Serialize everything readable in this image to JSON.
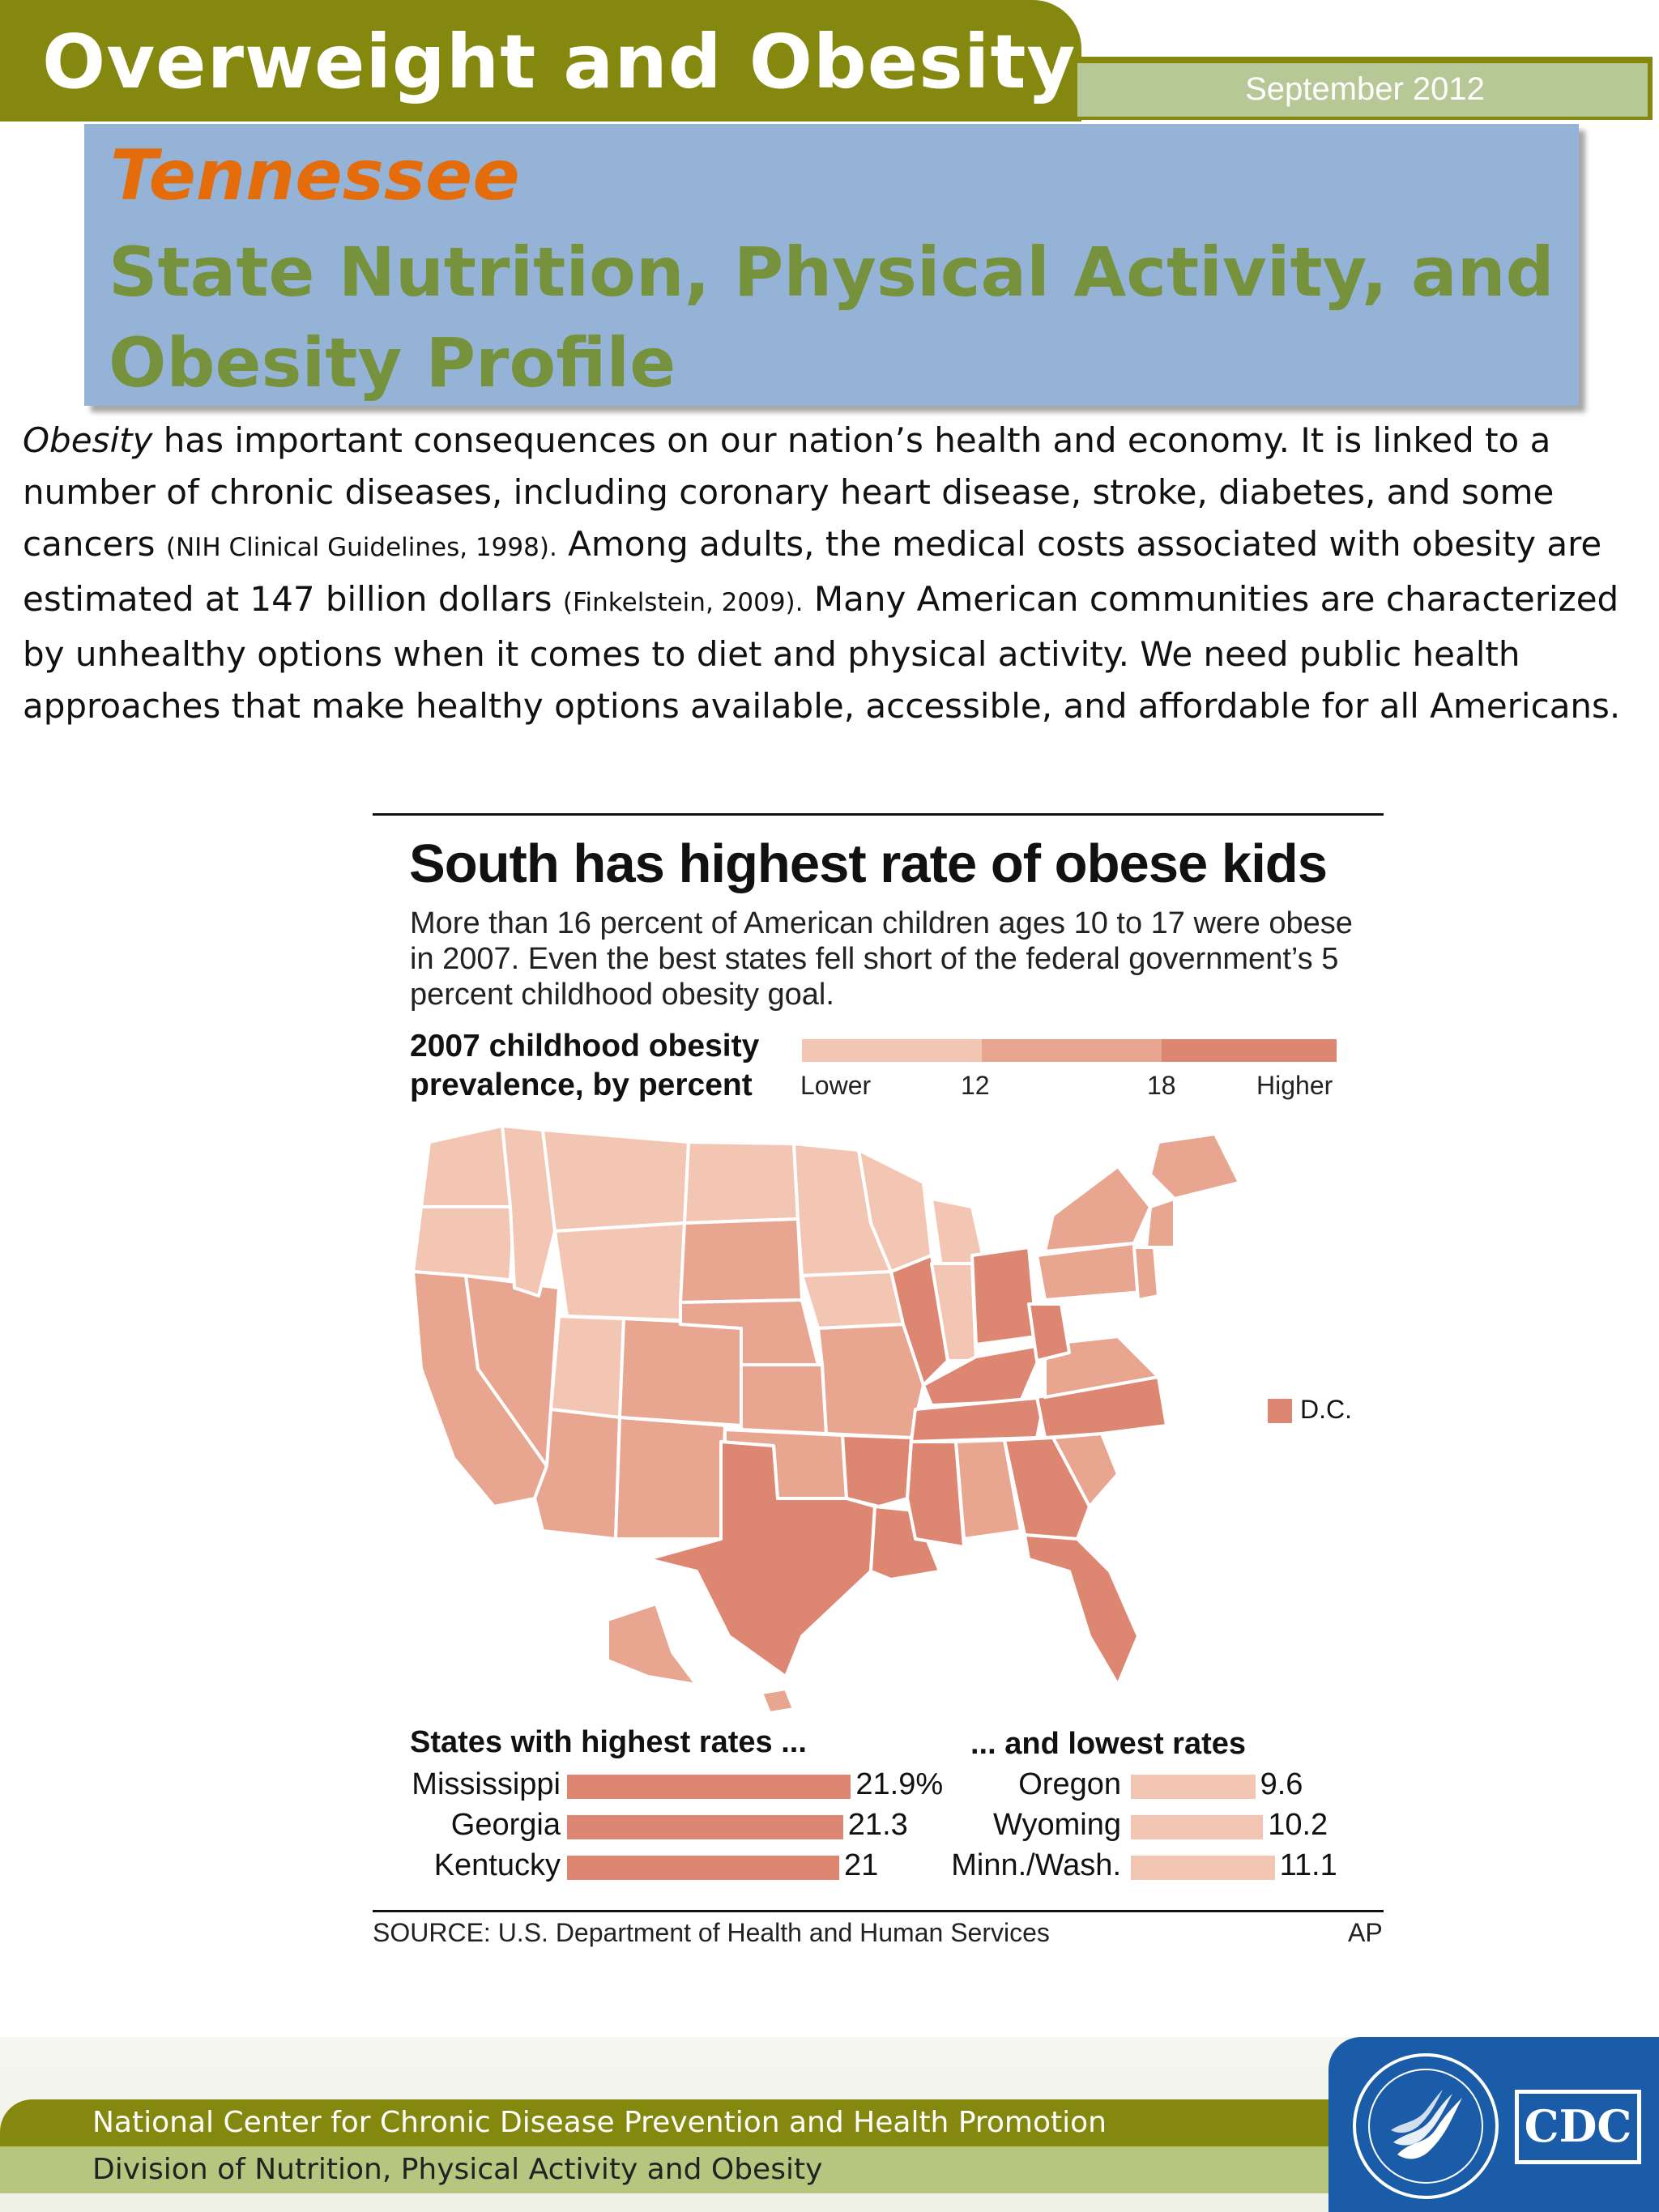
{
  "header": {
    "title": "Overweight and Obesity",
    "date": "September 2012"
  },
  "profile": {
    "state": "Tennessee",
    "title": "State Nutrition, Physical Activity, and Obesity Profile"
  },
  "intro": {
    "p1_italic": "Obesity",
    "p1_rest": " has important consequences on our nation’s health and economy. It is linked to a number of chronic diseases, including coronary heart disease, stroke, diabetes, and some cancers ",
    "cite1": "(NIH Clinical Guidelines, 1998).",
    "p2": " Among adults, the medical costs associated with obesity are estimated at 147 billion dollars ",
    "cite2": "(Finkelstein, 2009).",
    "p3": " Many American communities are characterized by unhealthy options when it comes to diet and physical activity. We need public health approaches that make healthy options available, accessible, and affordable for all Americans."
  },
  "infographic": {
    "title": "South has highest rate of obese kids",
    "subtitle": "More than 16 percent of American children ages 10 to 17 were obese in 2007. Even the best states fell short of the federal government’s 5 percent childhood obesity goal.",
    "legend_title": "2007 childhood obesity prevalence, by percent",
    "legend_labels": [
      "Lower",
      "12",
      "18",
      "Higher"
    ],
    "dc_label": "D.C.",
    "highest_title": "States with highest rates ...",
    "lowest_title": "... and lowest rates",
    "source": "SOURCE: U.S. Department of Health and Human Services",
    "credit": "AP",
    "colors": {
      "low": "#f3c6b4",
      "mid": "#e8a590",
      "high": "#dd8672",
      "border": "#ffffff"
    }
  },
  "chart_data": {
    "type": "bar",
    "title": "States with highest rates ... and lowest rates",
    "series": [
      {
        "name": "highest",
        "categories": [
          "Mississippi",
          "Georgia",
          "Kentucky"
        ],
        "values": [
          21.9,
          21.3,
          21
        ],
        "labels": [
          "21.9%",
          "21.3",
          "21"
        ]
      },
      {
        "name": "lowest",
        "categories": [
          "Oregon",
          "Wyoming",
          "Minn./Wash."
        ],
        "values": [
          9.6,
          10.2,
          11.1
        ],
        "labels": [
          "9.6",
          "10.2",
          "11.1"
        ]
      }
    ],
    "units": "percent"
  },
  "footer": {
    "line1": "National Center for Chronic Disease Prevention and Health Promotion",
    "line2": "Division of Nutrition, Physical Activity and Obesity",
    "hhs_icon": "hhs-seal-icon",
    "cdc_logo": "CDC"
  }
}
